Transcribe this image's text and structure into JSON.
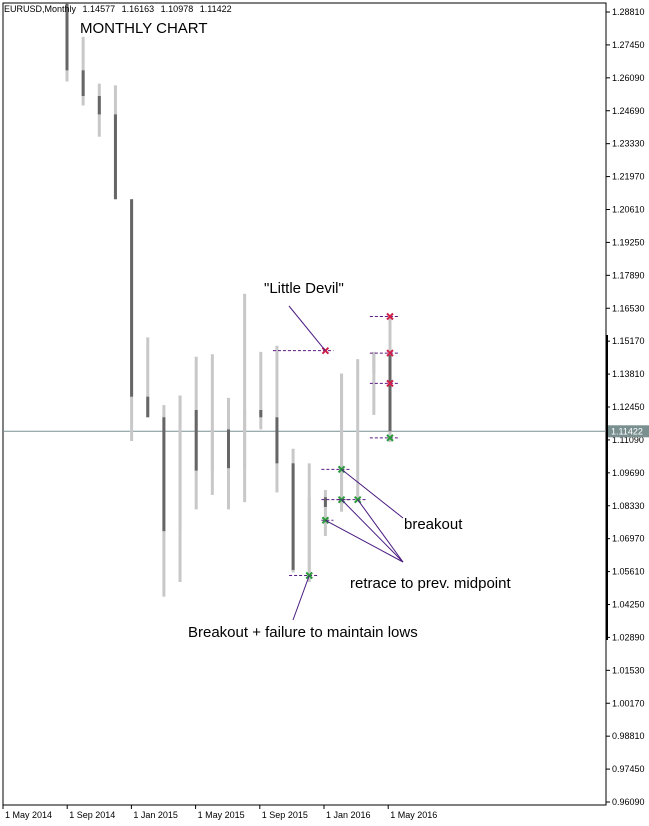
{
  "header": {
    "symbol": "EURUSD,Monthly",
    "values": [
      "1.14577",
      "1.16163",
      "1.10978",
      "1.11422"
    ]
  },
  "chart_title": "MONTHLY CHART",
  "annotations": {
    "little_devil": "\"Little Devil\"",
    "breakout": "breakout",
    "retrace": "retrace to prev. midpoint",
    "breakout_failure": "Breakout + failure to maintain lows"
  },
  "current_price_label": "1.11422",
  "colors": {
    "bear_body": "#666666",
    "bull_body": "#c8c8c8",
    "wick": "#c8c8c8",
    "price_line": "#7a9090",
    "marker_red": "#d0204a",
    "marker_green": "#2a9a3a",
    "dash_line": "#5a1a80",
    "arrow_line": "#4a1a80"
  },
  "chart_data": {
    "type": "candlestick",
    "title": "MONTHLY CHART",
    "ylim": [
      0.9608,
      1.2881
    ],
    "yticks": [
      "1.28810",
      "1.27450",
      "1.26090",
      "1.24690",
      "1.23330",
      "1.21970",
      "1.20610",
      "1.19250",
      "1.17890",
      "1.16530",
      "1.15170",
      "1.13810",
      "1.12450",
      "1.11090",
      "1.09690",
      "1.08330",
      "1.06970",
      "1.05610",
      "1.04250",
      "1.02890",
      "1.01530",
      "1.00170",
      "0.98810",
      "0.97450",
      "0.96090"
    ],
    "xticks": [
      "1 May 2014",
      "1 Sep 2014",
      "1 Jan 2015",
      "1 May 2015",
      "1 Sep 2015",
      "1 Jan 2016",
      "1 May 2016"
    ],
    "current_price": 1.11422,
    "candles": [
      {
        "o": 1.3,
        "h": 1.3,
        "l": 1.2586,
        "c": 1.2632
      },
      {
        "o": 1.2632,
        "h": 1.277,
        "l": 1.2487,
        "c": 1.2526
      },
      {
        "o": 1.2526,
        "h": 1.2577,
        "l": 1.2358,
        "c": 1.245
      },
      {
        "o": 1.245,
        "h": 1.257,
        "l": 1.21,
        "c": 1.21
      },
      {
        "o": 1.21,
        "h": 1.21,
        "l": 1.1102,
        "c": 1.1285
      },
      {
        "o": 1.1285,
        "h": 1.153,
        "l": 1.12,
        "c": 1.12
      },
      {
        "o": 1.12,
        "h": 1.125,
        "l": 1.046,
        "c": 1.073
      },
      {
        "o": 1.073,
        "h": 1.129,
        "l": 1.052,
        "c": 1.129
      },
      {
        "o": 1.123,
        "h": 1.145,
        "l": 1.082,
        "c": 1.098
      },
      {
        "o": 1.098,
        "h": 1.146,
        "l": 1.088,
        "c": 1.115
      },
      {
        "o": 1.115,
        "h": 1.128,
        "l": 1.082,
        "c": 1.099
      },
      {
        "o": 1.099,
        "h": 1.171,
        "l": 1.085,
        "c": 1.123
      },
      {
        "o": 1.123,
        "h": 1.147,
        "l": 1.115,
        "c": 1.12
      },
      {
        "o": 1.12,
        "h": 1.1495,
        "l": 1.089,
        "c": 1.101
      },
      {
        "o": 1.101,
        "h": 1.107,
        "l": 1.056,
        "c": 1.057
      },
      {
        "o": 1.057,
        "h": 1.101,
        "l": 1.052,
        "c": 1.087
      },
      {
        "o": 1.087,
        "h": 1.09,
        "l": 1.071,
        "c": 1.083
      },
      {
        "o": 1.083,
        "h": 1.138,
        "l": 1.081,
        "c": 1.138
      },
      {
        "o": 1.138,
        "h": 1.144,
        "l": 1.086,
        "c": 1.138
      },
      {
        "o": 1.138,
        "h": 1.147,
        "l": 1.121,
        "c": 1.146
      },
      {
        "o": 1.1457,
        "h": 1.1616,
        "l": 1.1098,
        "c": 1.1142
      }
    ],
    "markers": [
      {
        "candle": 16,
        "price": 1.1475,
        "color": "red",
        "dash_from": 13
      },
      {
        "candle": 20,
        "price": 1.1616,
        "color": "red",
        "dash_from": 19
      },
      {
        "candle": 20,
        "price": 1.1465,
        "color": "red",
        "dash_from": 19
      },
      {
        "candle": 20,
        "price": 1.134,
        "color": "red",
        "dash_from": 19
      },
      {
        "candle": 20,
        "price": 1.1115,
        "color": "green",
        "dash_from": 19
      },
      {
        "candle": 15,
        "price": 1.0547,
        "color": "green",
        "dash_from": 14
      },
      {
        "candle": 16,
        "price": 1.0775,
        "color": "green",
        "dash_from": 16
      },
      {
        "candle": 17,
        "price": 1.086,
        "color": "green",
        "dash_from": 16
      },
      {
        "candle": 18,
        "price": 1.086,
        "color": "green",
        "dash_from": 17
      },
      {
        "candle": 17,
        "price": 1.0985,
        "color": "green",
        "dash_from": 16
      }
    ]
  }
}
